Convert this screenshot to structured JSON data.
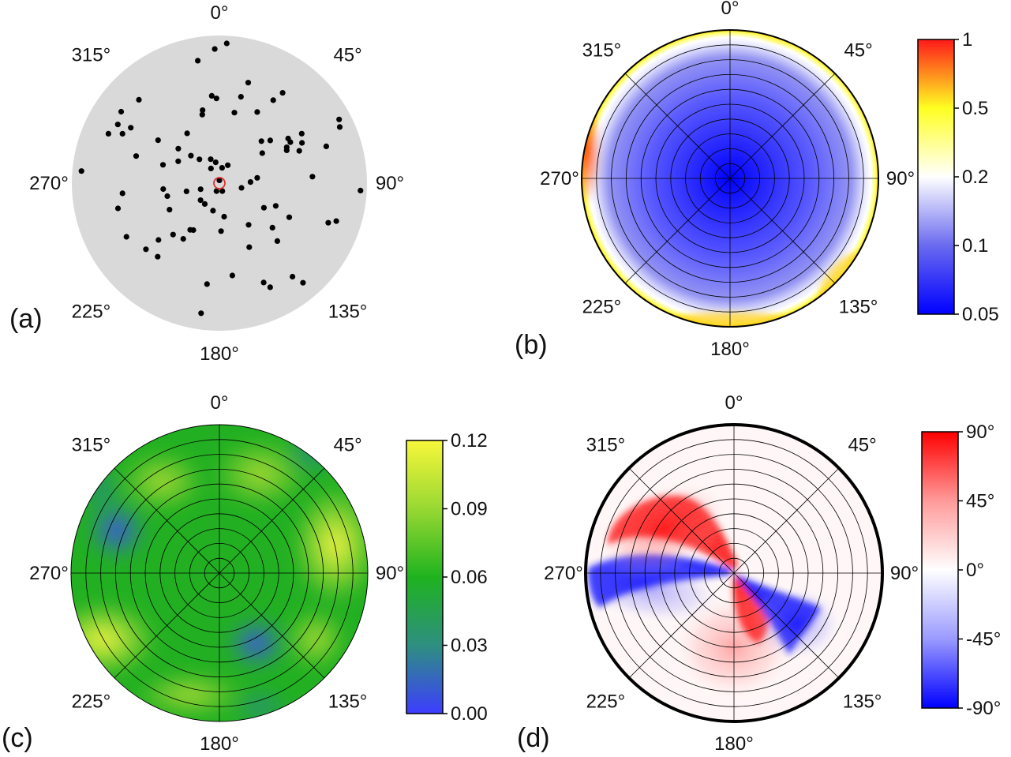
{
  "figure": {
    "panels": [
      {
        "id": "a",
        "label": "(a)",
        "angle_labels": [
          "0°",
          "45°",
          "90°",
          "135°",
          "180°",
          "225°",
          "270°",
          "315°"
        ]
      },
      {
        "id": "b",
        "label": "(b)",
        "angle_labels": [
          "0°",
          "45°",
          "90°",
          "135°",
          "180°",
          "225°",
          "270°",
          "315°"
        ],
        "colorbar": {
          "ticks": [
            "1",
            "0.5",
            "0.2",
            "0.1",
            "0.05"
          ],
          "colors": [
            "#ff1a1a",
            "#ffff22",
            "#ffffff",
            "#6a6af0",
            "#0000ff"
          ]
        }
      },
      {
        "id": "c",
        "label": "(c)",
        "angle_labels": [
          "0°",
          "45°",
          "90°",
          "135°",
          "180°",
          "225°",
          "270°",
          "315°"
        ],
        "colorbar": {
          "ticks": [
            "0.12",
            "0.09",
            "0.06",
            "0.03",
            "0.00"
          ],
          "colors": [
            "#f7f73a",
            "#98d832",
            "#1fb31f",
            "#2e8f80",
            "#3d3dff"
          ]
        }
      },
      {
        "id": "d",
        "label": "(d)",
        "angle_labels": [
          "0°",
          "45°",
          "90°",
          "135°",
          "180°",
          "225°",
          "270°",
          "315°"
        ],
        "colorbar": {
          "ticks": [
            "90°",
            "45°",
            "0°",
            "-45°",
            "-90°"
          ],
          "colors": [
            "#ff0000",
            "#ff9a9a",
            "#ffffff",
            "#9a9aff",
            "#0000ff"
          ]
        }
      }
    ]
  },
  "chart_data": [
    {
      "type": "scatter",
      "panel": "a",
      "title": "",
      "coordinate_system": "polar",
      "theta_unit": "deg",
      "r_range": [
        0,
        1
      ],
      "background_color": "#d9d9d9",
      "point_color": "#000000",
      "highlight_color": "#e03030",
      "points": [
        {
          "theta": 358,
          "r": 0.95
        },
        {
          "theta": 3,
          "r": 0.99
        },
        {
          "theta": 350,
          "r": 0.88
        },
        {
          "theta": 16,
          "r": 0.74
        },
        {
          "theta": 14,
          "r": 0.63
        },
        {
          "theta": 35,
          "r": 0.78
        },
        {
          "theta": 33,
          "r": 0.7
        },
        {
          "theta": 12,
          "r": 0.51
        },
        {
          "theta": 28,
          "r": 0.57
        },
        {
          "theta": 355,
          "r": 0.62
        },
        {
          "theta": 358,
          "r": 0.6
        },
        {
          "theta": 347,
          "r": 0.53
        },
        {
          "theta": 346,
          "r": 0.5
        },
        {
          "theta": 316,
          "r": 0.82
        },
        {
          "theta": 306,
          "r": 0.86
        },
        {
          "theta": 300,
          "r": 0.83
        },
        {
          "theta": 302,
          "r": 0.74
        },
        {
          "theta": 297,
          "r": 0.77
        },
        {
          "theta": 294,
          "r": 0.86
        },
        {
          "theta": 288,
          "r": 0.62
        },
        {
          "theta": 275,
          "r": 0.98
        },
        {
          "theta": 327,
          "r": 0.42
        },
        {
          "theta": 314,
          "r": 0.28
        },
        {
          "theta": 320,
          "r": 0.22
        },
        {
          "theta": 310,
          "r": 0.38
        },
        {
          "theta": 340,
          "r": 0.18
        },
        {
          "theta": 350,
          "r": 0.15
        },
        {
          "theta": 25,
          "r": 0.14
        },
        {
          "theta": 10,
          "r": 0.11
        },
        {
          "theta": 330,
          "r": 0.12
        },
        {
          "theta": 0,
          "r": 0.02
        },
        {
          "theta": 200,
          "r": 0.06
        },
        {
          "theta": 160,
          "r": 0.06
        },
        {
          "theta": 45,
          "r": 0.42
        },
        {
          "theta": 55,
          "r": 0.37
        },
        {
          "theta": 50,
          "r": 0.47
        },
        {
          "theta": 60,
          "r": 0.58
        },
        {
          "theta": 57,
          "r": 0.58
        },
        {
          "theta": 62,
          "r": 0.54
        },
        {
          "theta": 64,
          "r": 0.53
        },
        {
          "theta": 64,
          "r": 0.65
        },
        {
          "theta": 59,
          "r": 0.68
        },
        {
          "theta": 68,
          "r": 0.61
        },
        {
          "theta": 71,
          "r": 0.8
        },
        {
          "theta": 65,
          "r": 0.94
        },
        {
          "theta": 62,
          "r": 0.96
        },
        {
          "theta": 86,
          "r": 0.66
        },
        {
          "theta": 93,
          "r": 1.0
        },
        {
          "theta": 82,
          "r": 0.27
        },
        {
          "theta": 88,
          "r": 0.22
        },
        {
          "theta": 102,
          "r": 0.16
        },
        {
          "theta": 112,
          "r": 0.43
        },
        {
          "theta": 119,
          "r": 0.36
        },
        {
          "theta": 116,
          "r": 0.55
        },
        {
          "theta": 108,
          "r": 0.87
        },
        {
          "theta": 110,
          "r": 0.82
        },
        {
          "theta": 130,
          "r": 0.49
        },
        {
          "theta": 135,
          "r": 0.58
        },
        {
          "theta": 142,
          "r": 0.84
        },
        {
          "theta": 140,
          "r": 0.92
        },
        {
          "theta": 155,
          "r": 0.5
        },
        {
          "theta": 154,
          "r": 0.82
        },
        {
          "theta": 156,
          "r": 0.77
        },
        {
          "theta": 145,
          "r": 0.36
        },
        {
          "theta": 172,
          "r": 0.24
        },
        {
          "theta": 187,
          "r": 0.72
        },
        {
          "theta": 172,
          "r": 0.66
        },
        {
          "theta": 188,
          "r": 0.93
        },
        {
          "theta": 178,
          "r": 0.34
        },
        {
          "theta": 193,
          "r": 0.2
        },
        {
          "theta": 215,
          "r": 0.18
        },
        {
          "theta": 228,
          "r": 0.18
        },
        {
          "theta": 213,
          "r": 0.47
        },
        {
          "theta": 209,
          "r": 0.38
        },
        {
          "theta": 212,
          "r": 0.39
        },
        {
          "theta": 222,
          "r": 0.49
        },
        {
          "theta": 220,
          "r": 0.68
        },
        {
          "theta": 227,
          "r": 0.59
        },
        {
          "theta": 228,
          "r": 0.7
        },
        {
          "theta": 240,
          "r": 0.76
        },
        {
          "theta": 256,
          "r": 0.74
        },
        {
          "theta": 242,
          "r": 0.4
        },
        {
          "theta": 256,
          "r": 0.38
        },
        {
          "theta": 264,
          "r": 0.4
        },
        {
          "theta": 264,
          "r": 0.69
        },
        {
          "theta": 256,
          "r": 0.24
        },
        {
          "theta": 252,
          "r": 0.14
        },
        {
          "theta": 288,
          "r": 0.42
        },
        {
          "theta": 298,
          "r": 0.33
        },
        {
          "theta": 305,
          "r": 0.53
        }
      ],
      "highlight": {
        "theta": 0,
        "r": 0.0
      }
    },
    {
      "type": "heatmap",
      "panel": "b",
      "title": "",
      "coordinate_system": "polar",
      "scale": "log",
      "colorbar_range": [
        0.05,
        1
      ],
      "grid": true,
      "r_grid_rings": 10,
      "angular_grid_deg": 45,
      "description": "value ≈0.05 at centre rising slowly with radius; sharp increase near rim, peaks ≈0.6–1 near 280°–315° and around 135°–225°"
    },
    {
      "type": "heatmap",
      "panel": "c",
      "title": "",
      "coordinate_system": "polar",
      "scale": "linear",
      "colorbar_range": [
        0.0,
        0.12
      ],
      "grid": true,
      "r_grid_rings": 10,
      "angular_grid_deg": 45,
      "features": [
        {
          "theta": 240,
          "r": 0.85,
          "value": 0.12
        },
        {
          "theta": 75,
          "r": 0.85,
          "value": 0.11
        },
        {
          "theta": 300,
          "r": 0.85,
          "value": 0.01
        },
        {
          "theta": 143,
          "r": 0.55,
          "value": 0.01
        },
        {
          "theta": 330,
          "r": 0.5,
          "value": 0.1
        },
        {
          "theta": 20,
          "r": 0.7,
          "value": 0.09
        },
        {
          "theta": 200,
          "r": 0.9,
          "value": 0.1
        },
        {
          "theta": 0,
          "r": 0.0,
          "value": 0.06
        }
      ]
    },
    {
      "type": "heatmap",
      "panel": "d",
      "title": "",
      "coordinate_system": "polar",
      "scale": "linear",
      "colorbar_range": [
        -90,
        90
      ],
      "unit": "°",
      "grid": true,
      "r_grid_rings": 10,
      "angular_grid_deg": 45,
      "description": "red lobes (+90°) at ~315° and ~185°, blue lobes (−90°) at ~275° and ~120°, spiral-like sign change, white (0°) elsewhere"
    }
  ]
}
